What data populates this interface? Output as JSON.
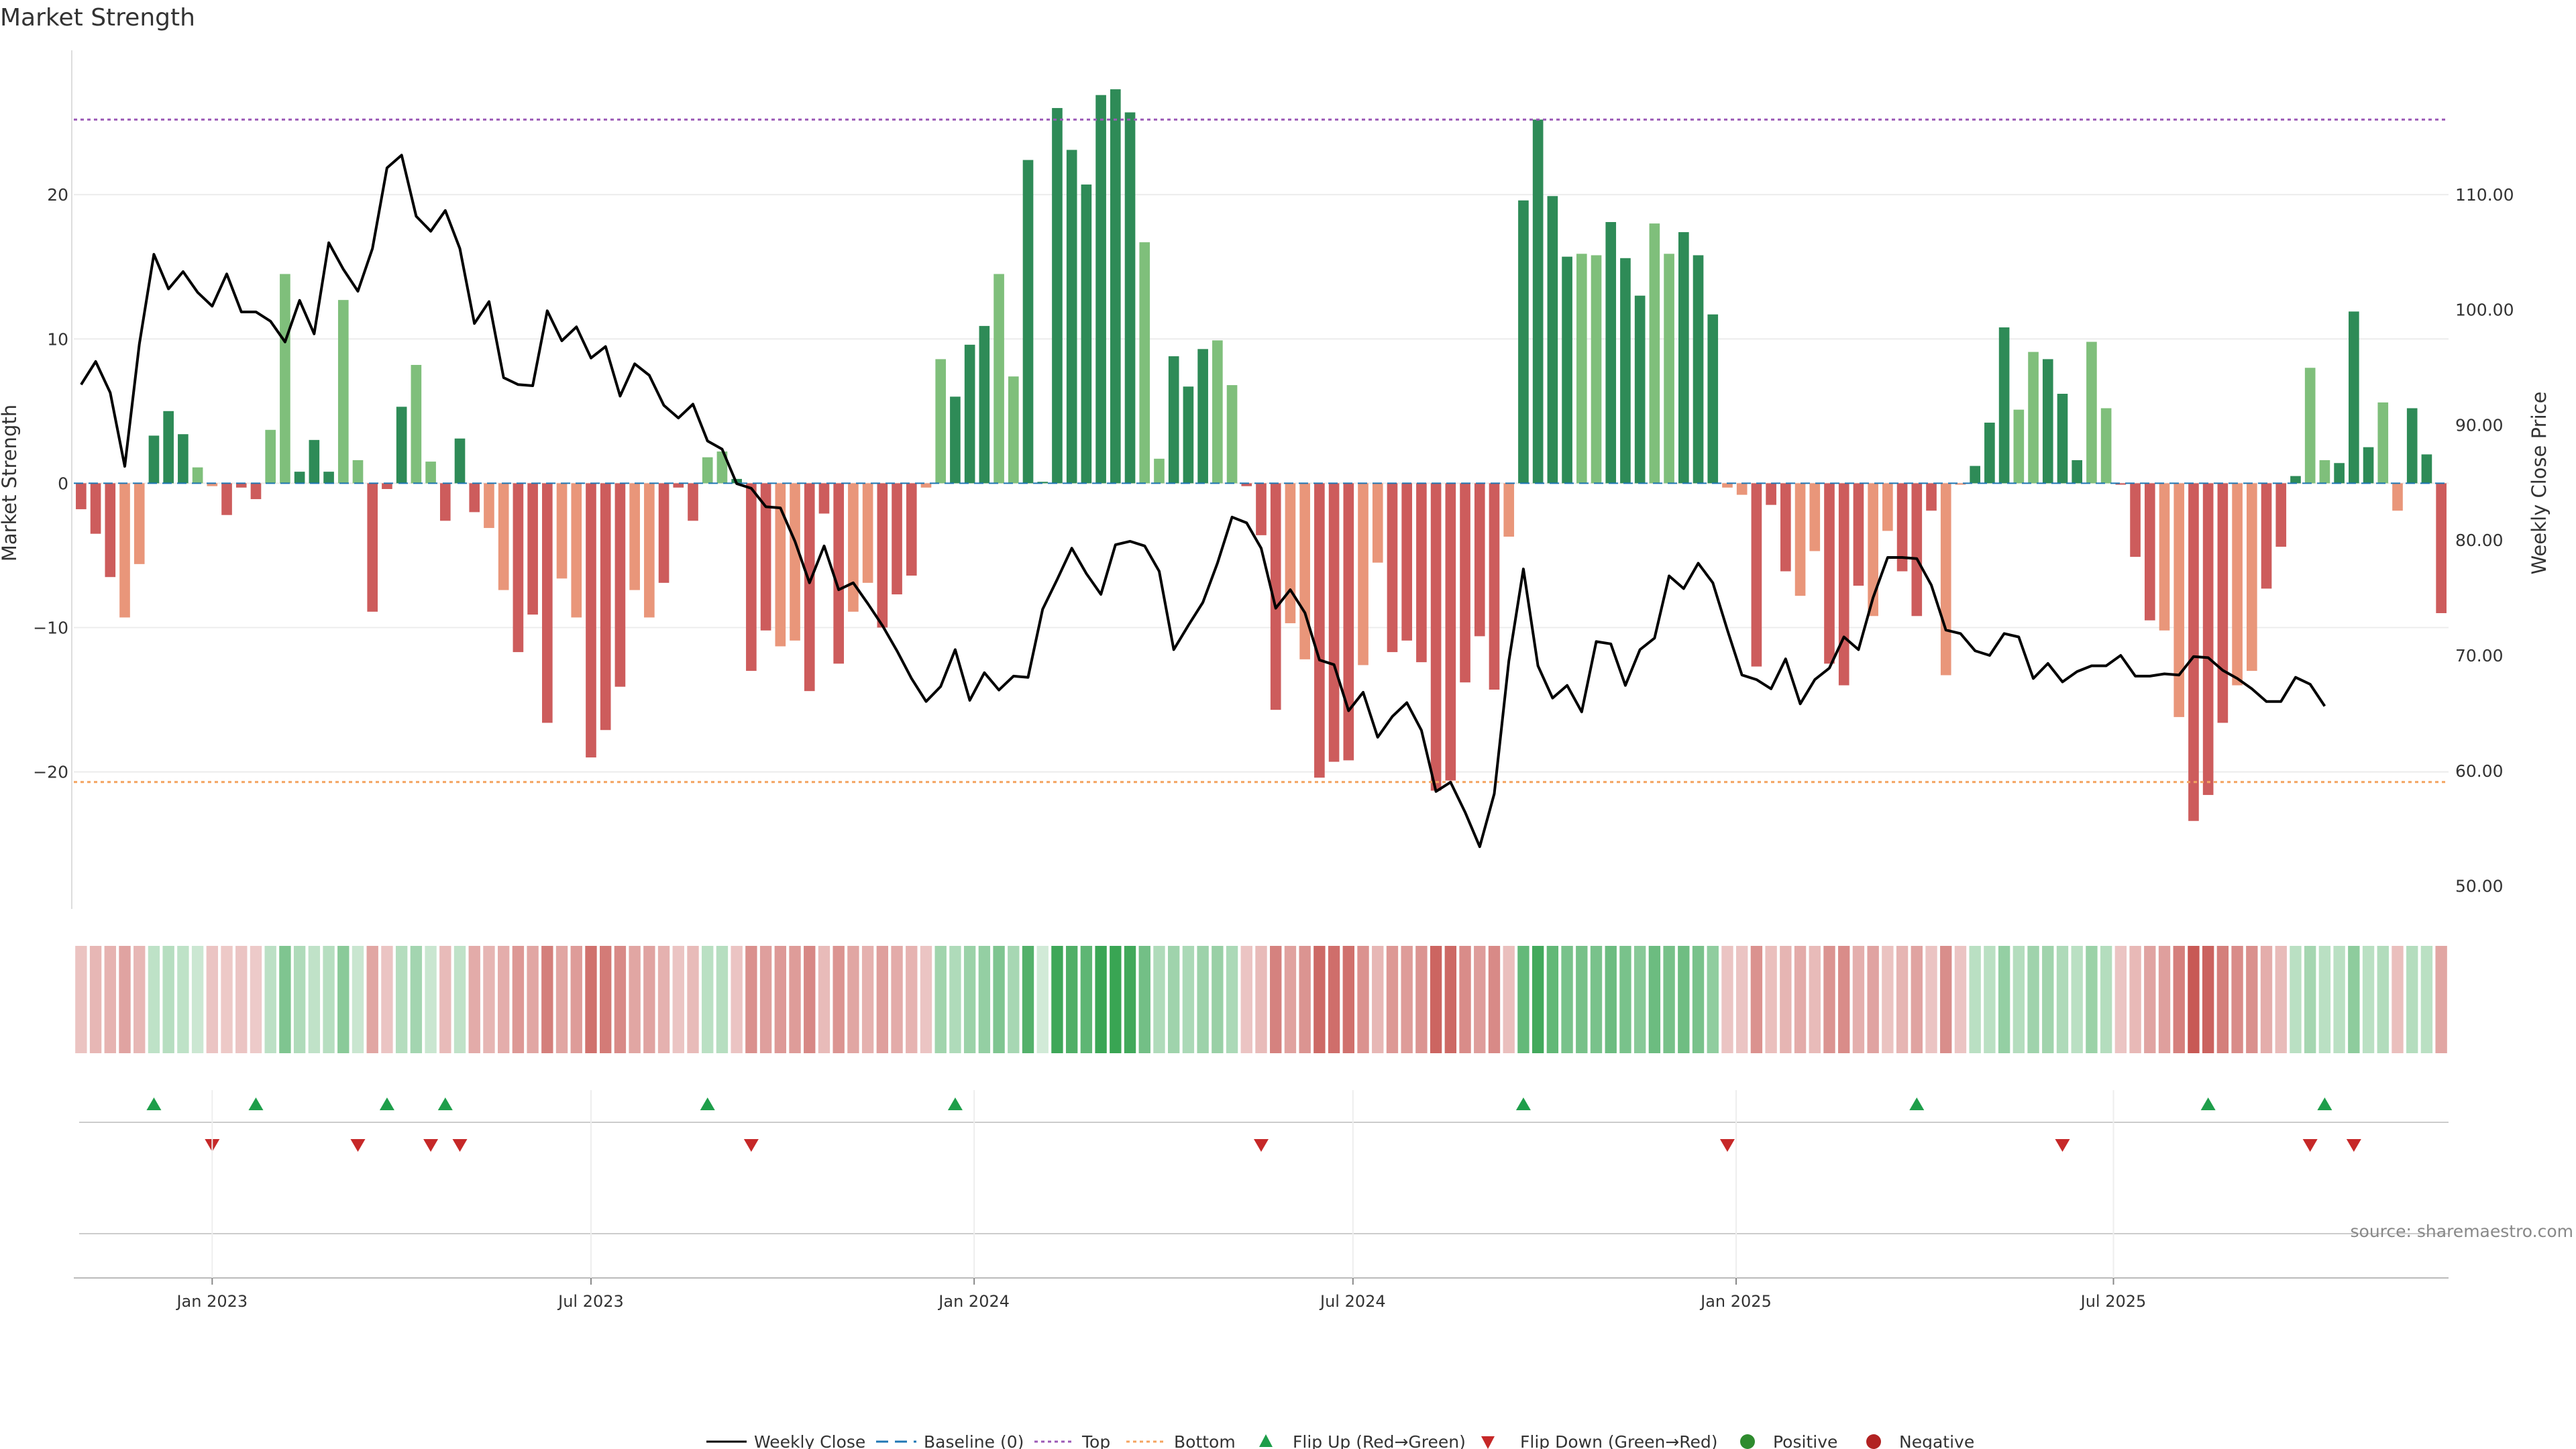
{
  "chart_data": {
    "type": "bar",
    "title": "Market Strength",
    "ylabel": "Market Strength",
    "y2label": "Weekly Close Price",
    "ylim": [
      -29.5,
      30
    ],
    "y2lim": [
      48,
      122.5
    ],
    "y_ticks": [
      20,
      10,
      0,
      -10,
      -20
    ],
    "y_tick_labels": [
      "20",
      "10",
      "0",
      "−10",
      "−20"
    ],
    "y2_ticks": [
      110,
      100,
      90,
      80,
      70,
      60,
      50
    ],
    "y2_tick_labels": [
      "110.00",
      "100.00",
      "90.00",
      "80.00",
      "70.00",
      "60.00",
      "50.00"
    ],
    "x_ticks": [
      9,
      35,
      61.3,
      87.3,
      113.6,
      139.5
    ],
    "x_tick_labels": [
      "Jan 2023",
      "Jul 2023",
      "Jan 2024",
      "Jul 2024",
      "Jan 2025",
      "Jul 2025"
    ],
    "top_line": 25.2,
    "bottom_line": -20.7,
    "strength": [
      -1.8,
      -3.5,
      -6.5,
      -9.3,
      -5.6,
      3.3,
      5.0,
      3.4,
      1.1,
      -0.2,
      -2.2,
      -0.3,
      -1.1,
      3.7,
      14.5,
      0.8,
      3.0,
      0.8,
      12.7,
      1.6,
      -8.9,
      -0.4,
      5.3,
      8.2,
      1.5,
      -2.6,
      3.1,
      -2.0,
      -3.1,
      -7.4,
      -11.7,
      -9.1,
      -16.6,
      -6.6,
      -9.3,
      -19.0,
      -17.1,
      -14.1,
      -7.4,
      -9.3,
      -6.9,
      -0.3,
      -2.6,
      1.8,
      2.2,
      0.3,
      -13.0,
      -10.2,
      -11.3,
      -10.9,
      -14.4,
      -2.1,
      -12.5,
      -8.9,
      -6.9,
      -10.0,
      -7.7,
      -6.4,
      -0.3,
      8.6,
      6.0,
      9.6,
      10.9,
      14.5,
      7.4,
      22.4,
      0.1,
      26.0,
      23.1,
      20.7,
      26.9,
      27.3,
      25.7,
      16.7,
      1.7,
      8.8,
      6.7,
      9.3,
      9.9,
      6.8,
      -0.2,
      -3.6,
      -15.7,
      -9.7,
      -12.2,
      -20.4,
      -19.3,
      -19.2,
      -12.6,
      -5.5,
      -11.7,
      -10.9,
      -12.4,
      -21.3,
      -20.6,
      -13.8,
      -10.6,
      -14.3,
      -3.7,
      19.6,
      25.2,
      19.9,
      15.7,
      15.9,
      15.8,
      18.1,
      15.6,
      13.0,
      18.0,
      15.9,
      17.4,
      15.8,
      11.7,
      -0.3,
      -0.8,
      -12.7,
      -1.5,
      -6.1,
      -7.8,
      -4.7,
      -12.5,
      -14.0,
      -7.1,
      -9.2,
      -3.3,
      -6.1,
      -9.2,
      -1.9,
      -13.3,
      -0.1,
      1.2,
      4.2,
      10.8,
      5.1,
      9.1,
      8.6,
      6.2,
      1.6,
      9.8,
      5.2,
      -0.1,
      -5.1,
      -9.5,
      -10.2,
      -16.2,
      -23.4,
      -21.6,
      -16.6,
      -14.0,
      -13.0,
      -7.3,
      -4.4,
      0.5,
      8.0,
      1.6,
      1.4,
      11.9,
      2.5,
      5.6,
      -1.9,
      5.2,
      2.0,
      -9.0
    ],
    "close": [
      93.5,
      95.5,
      92.8,
      86.4,
      97.0,
      104.8,
      101.8,
      103.3,
      101.5,
      100.3,
      103.1,
      99.8,
      99.8,
      99.0,
      97.2,
      100.8,
      97.9,
      105.8,
      103.5,
      101.6,
      105.3,
      112.3,
      113.4,
      108.1,
      106.8,
      108.6,
      105.3,
      98.8,
      100.7,
      94.1,
      93.5,
      93.4,
      99.9,
      97.3,
      98.5,
      95.8,
      96.8,
      92.5,
      95.3,
      94.3,
      91.7,
      90.6,
      91.8,
      88.6,
      87.9,
      84.9,
      84.5,
      82.9,
      82.8,
      79.9,
      76.3,
      79.5,
      75.7,
      76.3,
      74.5,
      72.6,
      70.4,
      68.0,
      66.0,
      67.3,
      70.5,
      66.1,
      68.5,
      67.0,
      68.2,
      68.1,
      74.0,
      76.6,
      79.3,
      77.1,
      75.3,
      79.6,
      79.9,
      79.5,
      77.3,
      70.5,
      72.6,
      74.6,
      78.0,
      82.0,
      81.5,
      79.3,
      74.1,
      75.7,
      73.7,
      69.6,
      69.2,
      65.2,
      66.8,
      62.9,
      64.7,
      65.9,
      63.5,
      58.2,
      59.0,
      56.4,
      53.4,
      58.0,
      69.5,
      77.5,
      69.1,
      66.3,
      67.4,
      65.1,
      71.2,
      71.0,
      67.4,
      70.5,
      71.5,
      76.9,
      75.8,
      78.0,
      76.3,
      72.2,
      68.3,
      67.9,
      67.1,
      69.7,
      65.8,
      67.9,
      68.9,
      71.6,
      70.5,
      75.0,
      78.5,
      78.5,
      78.4,
      76.1,
      72.2,
      71.9,
      70.4,
      70.0,
      71.9,
      71.6,
      68.0,
      69.3,
      67.7,
      68.6,
      69.1,
      69.1,
      70.0,
      68.2,
      68.2,
      68.4,
      68.3,
      69.9,
      69.8,
      68.7,
      68.0,
      67.1,
      66.0,
      66.0,
      68.1,
      67.5,
      65.6
    ],
    "strength_ribbon": [
      -3.5,
      -5.5,
      -6.5,
      -9.3,
      -5.6,
      3.3,
      5.0,
      3.4,
      1.1,
      -3,
      -2.2,
      -3,
      -2,
      3.7,
      14.5,
      6,
      3.0,
      5,
      12.7,
      1.6,
      -8.9,
      -3,
      5.3,
      8.2,
      1.5,
      -5,
      3.1,
      -8,
      -6,
      -7.4,
      -11.7,
      -9.1,
      -16.6,
      -9,
      -11,
      -19.0,
      -17.1,
      -14.1,
      -9,
      -9.3,
      -6.9,
      -3,
      -5,
      4,
      5,
      -3,
      -13.0,
      -10.2,
      -11.3,
      -10.9,
      -14.4,
      -5,
      -12.5,
      -8.9,
      -6.9,
      -10.0,
      -7.7,
      -6.4,
      -3,
      8.6,
      6.0,
      9.6,
      10.9,
      14.5,
      7.4,
      22.4,
      0,
      26.0,
      23.1,
      20.7,
      26.9,
      27.3,
      25.7,
      16.7,
      6,
      8.8,
      6.7,
      9.3,
      9.9,
      6.8,
      -3,
      -5,
      -15.7,
      -9.7,
      -12.2,
      -20.4,
      -19.3,
      -19.2,
      -12.6,
      -5.5,
      -11.7,
      -10.9,
      -12.4,
      -21.3,
      -20.6,
      -13.8,
      -10.6,
      -14.3,
      -4,
      19.6,
      25.2,
      19.9,
      15.7,
      15.9,
      15.8,
      18.1,
      15.6,
      13.0,
      18.0,
      15.9,
      17.4,
      15.8,
      11.7,
      -3,
      -3,
      -12.7,
      -4,
      -6.1,
      -7.8,
      -4.7,
      -12.5,
      -14.0,
      -7.1,
      -9.2,
      -3.3,
      -6.1,
      -9.2,
      -3,
      -13.3,
      -3,
      4,
      4.2,
      10.8,
      5.1,
      9.1,
      8.6,
      6.2,
      4,
      9.8,
      5.2,
      -3,
      -5.1,
      -9.5,
      -10.2,
      -16.2,
      -23.4,
      -21.6,
      -16.6,
      -14.0,
      -13.0,
      -7.3,
      -5,
      4,
      8.0,
      4,
      4,
      11.9,
      4,
      5.6,
      -4,
      5.2,
      4,
      -9.0
    ],
    "flip_up_weeks": [
      5,
      12,
      21,
      25,
      43,
      60,
      99,
      126,
      146,
      154
    ],
    "flip_down_weeks": [
      9,
      19,
      24,
      26,
      46,
      81,
      113,
      136,
      153,
      156
    ],
    "legend": [
      "Weekly Close",
      "Baseline (0)",
      "Top",
      "Bottom",
      "Flip Up (Red→Green)",
      "Flip Down (Green→Red)",
      "Positive",
      "Negative"
    ],
    "colors": {
      "pos_strong": "#2e8b57",
      "pos_light": "#7fbf7b",
      "neg_strong": "#cd5c5c",
      "neg_light": "#e9967a",
      "close_line": "#000000",
      "baseline": "#1f77b4",
      "top": "#9b59b6",
      "bottom": "#f4a460",
      "flip_up": "#1e9e4a",
      "flip_down": "#c62828",
      "positive_dot": "#2e8b2e",
      "negative_dot": "#b22222"
    }
  },
  "source": "source: sharemaestro.com"
}
